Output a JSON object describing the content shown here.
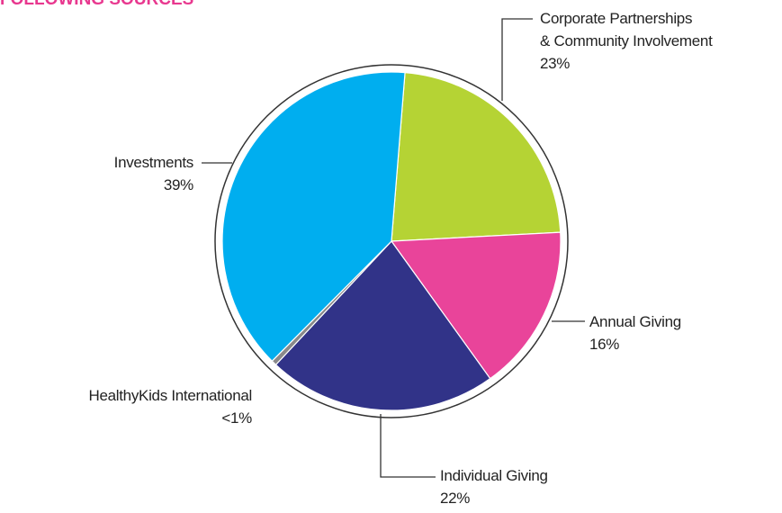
{
  "chart_data": {
    "type": "pie",
    "title": "FOLLOWING SOURCES",
    "categories": [
      "Corporate Partnerships\n& Community Involvement",
      "Annual Giving",
      "Individual Giving",
      "HealthyKids International",
      "Investments"
    ],
    "values": [
      23,
      16,
      22,
      0.5,
      39
    ],
    "value_labels": [
      "23%",
      "16%",
      "22%",
      "<1%",
      "39%"
    ],
    "colors": [
      "#b5d334",
      "#e9449a",
      "#313388",
      "#8a8a8a",
      "#00aeef"
    ],
    "title_color": "#e8388f"
  }
}
